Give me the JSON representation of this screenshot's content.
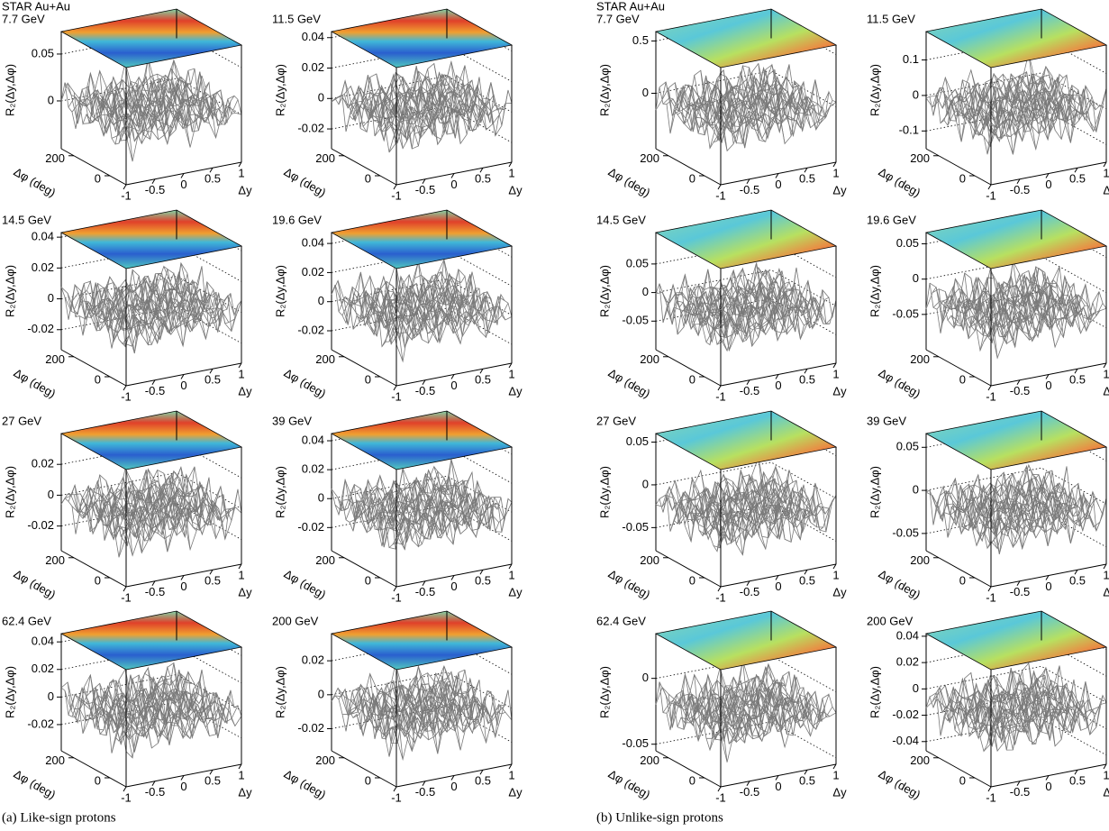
{
  "figure": {
    "z_label": "R₂(Δy,Δφ)",
    "phi_label": "Δφ (deg)",
    "y_label": "Δy",
    "y_lim": [
      -1,
      1
    ],
    "y_ticks": [
      -1,
      -0.5,
      0,
      0.5,
      1
    ],
    "phi_lim": [
      -90,
      270
    ],
    "phi_ticks": [
      0,
      200
    ]
  },
  "subfigures": [
    {
      "caption": "(a) Like-sign protons",
      "experiment": "STAR Au+Au",
      "style": "like",
      "panels": [
        {
          "label": "7.7 GeV",
          "zlim": [
            -0.051,
            0.074
          ],
          "zticks": [
            0,
            0.05
          ]
        },
        {
          "label": "11.5 GeV",
          "zlim": [
            -0.033,
            0.044
          ],
          "zticks": [
            -0.02,
            0,
            0.02,
            0.04
          ]
        },
        {
          "label": "14.5 GeV",
          "zlim": [
            -0.033,
            0.043
          ],
          "zticks": [
            -0.02,
            0,
            0.02,
            0.04
          ]
        },
        {
          "label": "19.6 GeV",
          "zlim": [
            -0.033,
            0.0475
          ],
          "zticks": [
            -0.02,
            0,
            0.02,
            0.04
          ]
        },
        {
          "label": "27 GeV",
          "zlim": [
            -0.036,
            0.04
          ],
          "zticks": [
            -0.02,
            0,
            0.02
          ]
        },
        {
          "label": "39 GeV",
          "zlim": [
            -0.036,
            0.045
          ],
          "zticks": [
            -0.02,
            0,
            0.02,
            0.04
          ]
        },
        {
          "label": "62.4 GeV",
          "zlim": [
            -0.039,
            0.046
          ],
          "zticks": [
            -0.02,
            0,
            0.02,
            0.04
          ]
        },
        {
          "label": "200 GeV",
          "zlim": [
            -0.033,
            0.036
          ],
          "zticks": [
            -0.02,
            0,
            0.02
          ]
        }
      ]
    },
    {
      "caption": "(b) Unlike-sign protons",
      "experiment": "STAR Au+Au",
      "style": "unlike",
      "panels": [
        {
          "label": "7.7 GeV",
          "zlim": [
            -0.53,
            0.59
          ],
          "zticks": [
            0,
            0.5
          ]
        },
        {
          "label": "11.5 GeV",
          "zlim": [
            -0.15,
            0.18
          ],
          "zticks": [
            -0.1,
            0,
            0.1
          ]
        },
        {
          "label": "14.5 GeV",
          "zlim": [
            -0.1,
            0.105
          ],
          "zticks": [
            -0.05,
            0,
            0.05
          ]
        },
        {
          "label": "19.6 GeV",
          "zlim": [
            -0.1,
            0.066
          ],
          "zticks": [
            -0.05,
            0,
            0.05
          ]
        },
        {
          "label": "27 GeV",
          "zlim": [
            -0.077,
            0.06
          ],
          "zticks": [
            -0.05,
            0,
            0.05
          ]
        },
        {
          "label": "39 GeV",
          "zlim": [
            -0.07,
            0.066
          ],
          "zticks": [
            -0.05,
            0,
            0.05
          ]
        },
        {
          "label": "62.4 GeV",
          "zlim": [
            -0.055,
            0.034
          ],
          "zticks": [
            -0.05,
            0
          ]
        },
        {
          "label": "200 GeV",
          "zlim": [
            -0.047,
            0.042
          ],
          "zticks": [
            -0.04,
            -0.02,
            0,
            0.02,
            0.04
          ]
        }
      ]
    }
  ]
}
